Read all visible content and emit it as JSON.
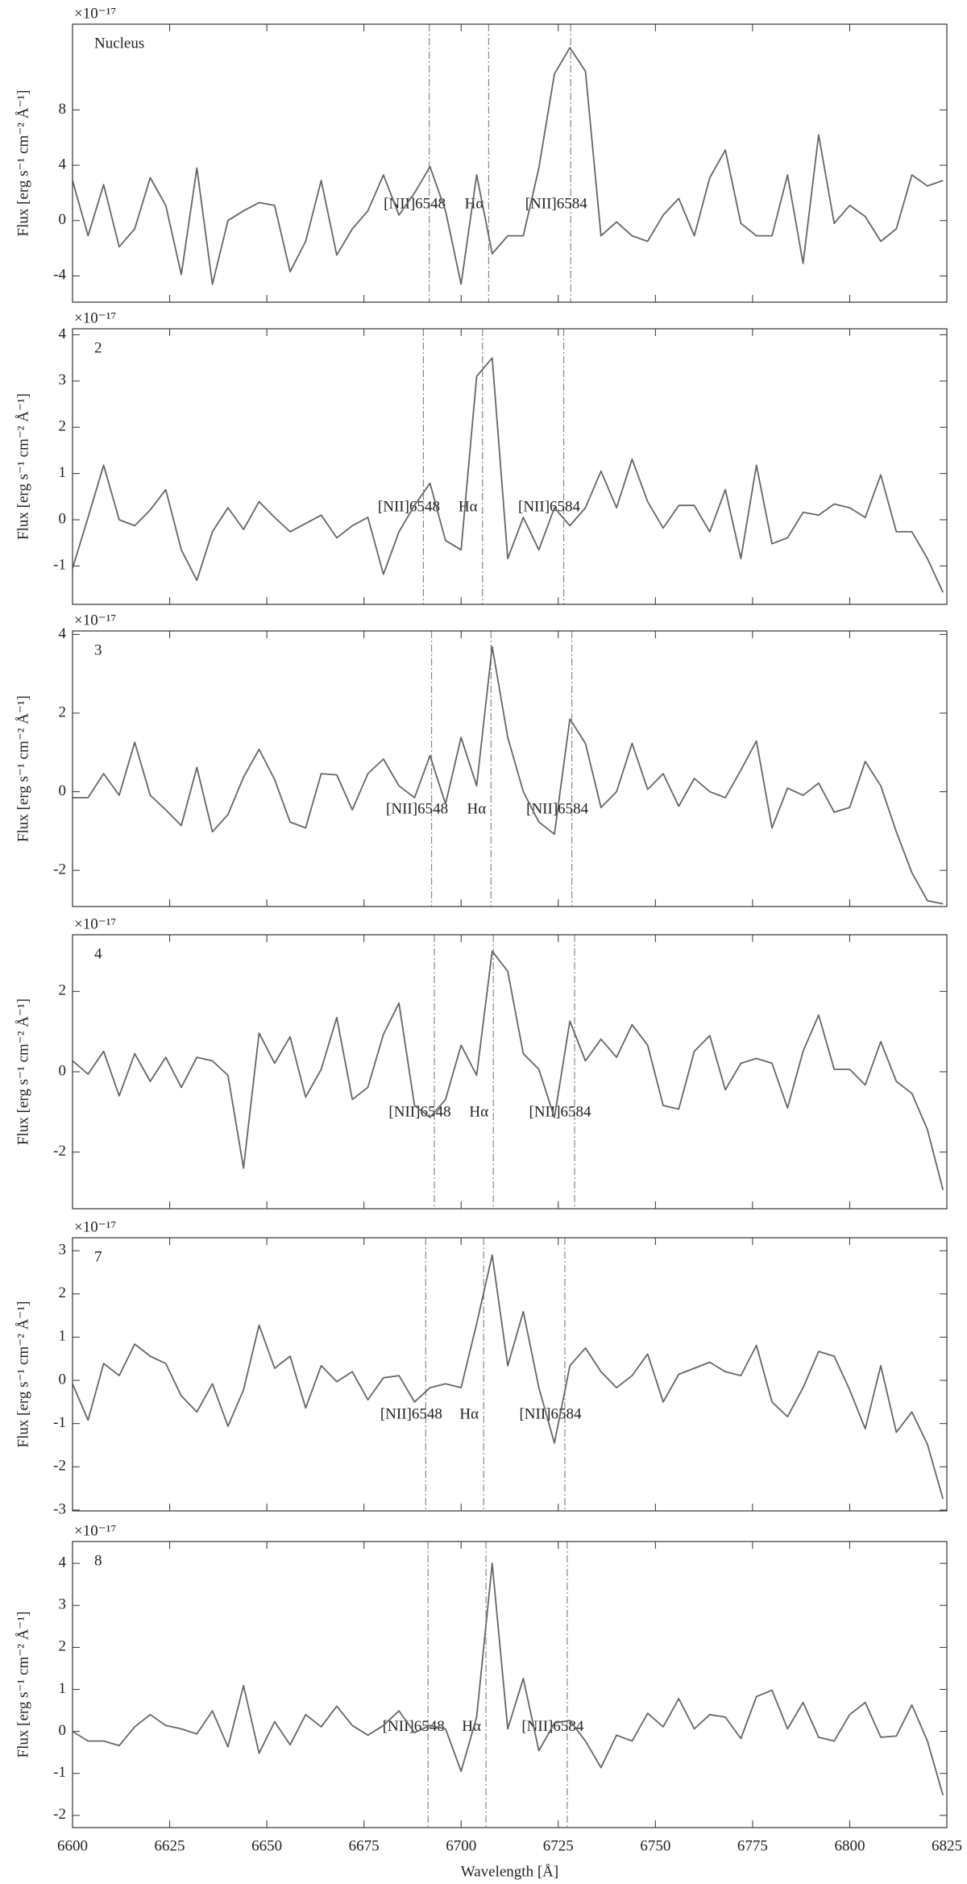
{
  "chart_data": [
    {
      "type": "line",
      "label": "Nucleus",
      "offset_text": "×10⁻¹⁷",
      "ylabel": "Flux [erg s⁻¹ cm⁻² Å⁻¹]",
      "xlim": [
        6600,
        6825
      ],
      "ylim": [
        -5.9,
        14.2
      ],
      "yticks": [
        -4,
        0,
        4,
        8
      ],
      "x": [
        6600,
        6604,
        6608,
        6612,
        6616,
        6620,
        6624,
        6628,
        6632,
        6636,
        6640,
        6644,
        6648,
        6652,
        6656,
        6660,
        6664,
        6668,
        6672,
        6676,
        6680,
        6684,
        6688,
        6692,
        6696,
        6700,
        6704,
        6708,
        6712,
        6716,
        6720,
        6724,
        6728,
        6732,
        6736,
        6740,
        6744,
        6748,
        6752,
        6756,
        6760,
        6764,
        6768,
        6772,
        6776,
        6780,
        6784,
        6788,
        6792,
        6796,
        6800,
        6804,
        6808,
        6812,
        6816,
        6820,
        6824
      ],
      "series": [
        {
          "color": "#666666",
          "values": [
            2.9,
            -1.1,
            2.6,
            -1.9,
            -0.6,
            3.1,
            1.1,
            -3.9,
            3.8,
            -4.6,
            0,
            0.7,
            1.3,
            1.1,
            -3.7,
            -1.5,
            2.9,
            -2.5,
            -0.6,
            0.7,
            3.3,
            0.4,
            2.0,
            3.9,
            0.7,
            -4.6,
            3.3,
            -2.4,
            -1.1,
            -1.1,
            3.8,
            10.6,
            12.5,
            10.8,
            -1.1,
            -0.1,
            -1.1,
            -1.5,
            0.4,
            1.6,
            -1.1,
            3.1,
            5.1,
            -0.2,
            -1.1,
            -1.1,
            3.3,
            -3.1,
            6.2,
            -0.2,
            1.1,
            0.3,
            -1.5,
            -0.6,
            3.3,
            2.5,
            2.9
          ]
        }
      ],
      "lines": [
        {
          "x": 6691.8,
          "label": "[NII]6548"
        },
        {
          "x": 6707.1,
          "label": "Hα"
        },
        {
          "x": 6728.2,
          "label": "[NII]6584"
        }
      ]
    },
    {
      "type": "line",
      "label": "2",
      "offset_text": "×10⁻¹⁷",
      "ylabel": "Flux [erg s⁻¹ cm⁻² Å⁻¹]",
      "xlim": [
        6600,
        6825
      ],
      "ylim": [
        -1.83,
        4.13
      ],
      "yticks": [
        -1,
        0,
        1,
        2,
        3,
        4
      ],
      "x": [
        6600,
        6604,
        6608,
        6612,
        6616,
        6620,
        6624,
        6628,
        6632,
        6636,
        6640,
        6644,
        6648,
        6652,
        6656,
        6660,
        6664,
        6668,
        6672,
        6676,
        6680,
        6684,
        6688,
        6692,
        6696,
        6700,
        6704,
        6708,
        6712,
        6716,
        6720,
        6724,
        6728,
        6732,
        6736,
        6740,
        6744,
        6748,
        6752,
        6756,
        6760,
        6764,
        6768,
        6772,
        6776,
        6780,
        6784,
        6788,
        6792,
        6796,
        6800,
        6804,
        6808,
        6812,
        6816,
        6820,
        6824
      ],
      "series": [
        {
          "color": "#666666",
          "values": [
            -1.05,
            0.05,
            1.18,
            0,
            -0.13,
            0.21,
            0.65,
            -0.65,
            -1.31,
            -0.26,
            0.26,
            -0.21,
            0.39,
            0.05,
            -0.26,
            -0.08,
            0.1,
            -0.39,
            -0.13,
            0.05,
            -1.18,
            -0.26,
            0.31,
            0.79,
            -0.45,
            -0.65,
            3.1,
            3.5,
            -0.84,
            0.05,
            -0.65,
            0.26,
            -0.13,
            0.26,
            1.05,
            0.26,
            1.31,
            0.39,
            -0.18,
            0.31,
            0.31,
            -0.26,
            0.65,
            -0.84,
            1.18,
            -0.52,
            -0.39,
            0.16,
            0.1,
            0.34,
            0.26,
            0.05,
            0.97,
            -0.26,
            -0.26,
            -0.84,
            -1.57
          ]
        }
      ],
      "lines": [
        {
          "x": 6690.3,
          "label": "[NII]6548"
        },
        {
          "x": 6705.5,
          "label": "Hα"
        },
        {
          "x": 6726.4,
          "label": "[NII]6584"
        }
      ]
    },
    {
      "type": "line",
      "label": "3",
      "offset_text": "×10⁻¹⁷",
      "ylabel": "Flux [erg s⁻¹ cm⁻² Å⁻¹]",
      "xlim": [
        6600,
        6825
      ],
      "ylim": [
        -2.92,
        4.09
      ],
      "yticks": [
        -2,
        0,
        2,
        4
      ],
      "x": [
        6600,
        6604,
        6608,
        6612,
        6616,
        6620,
        6624,
        6628,
        6632,
        6636,
        6640,
        6644,
        6648,
        6652,
        6656,
        6660,
        6664,
        6668,
        6672,
        6676,
        6680,
        6684,
        6688,
        6692,
        6696,
        6700,
        6704,
        6708,
        6712,
        6716,
        6720,
        6724,
        6728,
        6732,
        6736,
        6740,
        6744,
        6748,
        6752,
        6756,
        6760,
        6764,
        6768,
        6772,
        6776,
        6780,
        6784,
        6788,
        6792,
        6796,
        6800,
        6804,
        6808,
        6812,
        6816,
        6820,
        6824
      ],
      "series": [
        {
          "color": "#666666",
          "values": [
            -0.15,
            -0.15,
            0.46,
            -0.09,
            1.26,
            -0.09,
            -0.46,
            -0.86,
            0.62,
            -1.02,
            -0.58,
            0.37,
            1.08,
            0.31,
            -0.77,
            -0.92,
            0.46,
            0.43,
            -0.46,
            0.46,
            0.83,
            0.15,
            -0.15,
            0.92,
            -0.31,
            1.38,
            0.15,
            3.69,
            1.38,
            0,
            -0.77,
            -1.08,
            1.85,
            1.23,
            -0.4,
            0,
            1.23,
            0.06,
            0.46,
            -0.37,
            0.34,
            0,
            -0.15,
            0.55,
            1.29,
            -0.92,
            0.09,
            -0.09,
            0.22,
            -0.52,
            -0.4,
            0.77,
            0.15,
            -1.02,
            -2.06,
            -2.77,
            -2.85
          ]
        }
      ],
      "lines": [
        {
          "x": 6692.4,
          "label": "[NII]6548"
        },
        {
          "x": 6707.7,
          "label": "Hα"
        },
        {
          "x": 6728.5,
          "label": "[NII]6584"
        }
      ]
    },
    {
      "type": "line",
      "label": "4",
      "offset_text": "×10⁻¹⁷",
      "ylabel": "Flux [erg s⁻¹ cm⁻² Å⁻¹]",
      "xlim": [
        6600,
        6825
      ],
      "ylim": [
        -3.41,
        3.41
      ],
      "yticks": [
        -2,
        0,
        2
      ],
      "x": [
        6600,
        6604,
        6608,
        6612,
        6616,
        6620,
        6624,
        6628,
        6632,
        6636,
        6640,
        6644,
        6648,
        6652,
        6656,
        6660,
        6664,
        6668,
        6672,
        6676,
        6680,
        6684,
        6688,
        6692,
        6696,
        6700,
        6704,
        6708,
        6712,
        6716,
        6720,
        6724,
        6728,
        6732,
        6736,
        6740,
        6744,
        6748,
        6752,
        6756,
        6760,
        6764,
        6768,
        6772,
        6776,
        6780,
        6784,
        6788,
        6792,
        6796,
        6800,
        6804,
        6808,
        6812,
        6816,
        6820,
        6824
      ],
      "series": [
        {
          "color": "#666666",
          "values": [
            0.27,
            -0.06,
            0.51,
            -0.6,
            0.45,
            -0.24,
            0.36,
            -0.39,
            0.36,
            0.27,
            -0.09,
            -2.4,
            0.96,
            0.21,
            0.87,
            -0.63,
            0.06,
            1.35,
            -0.69,
            -0.39,
            0.93,
            1.71,
            -0.84,
            -1.14,
            -0.69,
            0.66,
            -0.09,
            3.0,
            2.5,
            0.45,
            0.06,
            -1.14,
            1.26,
            0.27,
            0.81,
            0.36,
            1.17,
            0.66,
            -0.84,
            -0.93,
            0.51,
            0.9,
            -0.45,
            0.21,
            0.33,
            0.21,
            -0.9,
            0.51,
            1.41,
            0.06,
            0.06,
            -0.33,
            0.75,
            -0.24,
            -0.54,
            -1.44,
            -2.94
          ]
        }
      ],
      "lines": [
        {
          "x": 6693.1,
          "label": "[NII]6548"
        },
        {
          "x": 6708.3,
          "label": "Hα"
        },
        {
          "x": 6729.2,
          "label": "[NII]6584"
        }
      ]
    },
    {
      "type": "line",
      "label": "7",
      "offset_text": "×10⁻¹⁷",
      "ylabel": "Flux [erg s⁻¹ cm⁻² Å⁻¹]",
      "xlim": [
        6600,
        6825
      ],
      "ylim": [
        -3.02,
        3.3
      ],
      "yticks": [
        -3,
        -2,
        -1,
        0,
        1,
        2,
        3
      ],
      "x": [
        6600,
        6604,
        6608,
        6612,
        6616,
        6620,
        6624,
        6628,
        6632,
        6636,
        6640,
        6644,
        6648,
        6652,
        6656,
        6660,
        6664,
        6668,
        6672,
        6676,
        6680,
        6684,
        6688,
        6692,
        6696,
        6700,
        6704,
        6708,
        6712,
        6716,
        6720,
        6724,
        6728,
        6732,
        6736,
        6740,
        6744,
        6748,
        6752,
        6756,
        6760,
        6764,
        6768,
        6772,
        6776,
        6780,
        6784,
        6788,
        6792,
        6796,
        6800,
        6804,
        6808,
        6812,
        6816,
        6820,
        6824
      ],
      "series": [
        {
          "color": "#666666",
          "values": [
            -0.08,
            -0.92,
            0.39,
            0.11,
            0.84,
            0.56,
            0.39,
            -0.36,
            -0.73,
            -0.08,
            -1.06,
            -0.22,
            1.28,
            0.28,
            0.56,
            -0.64,
            0.34,
            -0.03,
            0.2,
            -0.45,
            0.06,
            0.11,
            -0.5,
            -0.17,
            -0.08,
            -0.17,
            1.31,
            2.9,
            0.34,
            1.59,
            -0.17,
            -1.45,
            0.34,
            0.75,
            0.2,
            -0.17,
            0.11,
            0.61,
            -0.5,
            0.14,
            0.28,
            0.42,
            0.2,
            0.11,
            0.81,
            -0.5,
            -0.84,
            -0.17,
            0.67,
            0.56,
            -0.22,
            -1.12,
            0.34,
            -1.2,
            -0.73,
            -1.48,
            -2.74
          ]
        }
      ],
      "lines": [
        {
          "x": 6690.9,
          "label": "[NII]6548"
        },
        {
          "x": 6705.8,
          "label": "Hα"
        },
        {
          "x": 6726.7,
          "label": "[NII]6584"
        }
      ]
    },
    {
      "type": "line",
      "label": "8",
      "offset_text": "×10⁻¹⁷",
      "ylabel": "Flux [erg s⁻¹ cm⁻² Å⁻¹]",
      "xlabel": "Wavelength [Å]",
      "xlim": [
        6600,
        6825
      ],
      "ylim": [
        -2.29,
        4.52
      ],
      "yticks": [
        -2,
        -1,
        0,
        1,
        2,
        3,
        4
      ],
      "xticks": [
        6600,
        6625,
        6650,
        6675,
        6700,
        6725,
        6750,
        6775,
        6800,
        6825
      ],
      "x": [
        6600,
        6604,
        6608,
        6612,
        6616,
        6620,
        6624,
        6628,
        6632,
        6636,
        6640,
        6644,
        6648,
        6652,
        6656,
        6660,
        6664,
        6668,
        6672,
        6676,
        6680,
        6684,
        6688,
        6692,
        6696,
        6700,
        6704,
        6708,
        6712,
        6716,
        6720,
        6724,
        6728,
        6732,
        6736,
        6740,
        6744,
        6748,
        6752,
        6756,
        6760,
        6764,
        6768,
        6772,
        6776,
        6780,
        6784,
        6788,
        6792,
        6796,
        6800,
        6804,
        6808,
        6812,
        6816,
        6820,
        6824
      ],
      "series": [
        {
          "color": "#666666",
          "values": [
            0,
            -0.23,
            -0.23,
            -0.34,
            0.11,
            0.4,
            0.14,
            0.06,
            -0.06,
            0.49,
            -0.37,
            1.09,
            -0.52,
            0.23,
            -0.32,
            0.4,
            0.11,
            0.6,
            0.14,
            -0.09,
            0.14,
            0.49,
            -0.03,
            0.14,
            0.06,
            -0.95,
            0.34,
            4.0,
            0.06,
            1.26,
            -0.46,
            0.2,
            0.26,
            -0.23,
            -0.86,
            -0.09,
            -0.23,
            0.43,
            0.11,
            0.78,
            0.06,
            0.4,
            0.34,
            -0.17,
            0.83,
            0.98,
            0.06,
            0.69,
            -0.14,
            -0.23,
            0.4,
            0.69,
            -0.14,
            -0.11,
            0.63,
            -0.23,
            -1.52
          ]
        }
      ],
      "lines": [
        {
          "x": 6691.5,
          "label": "[NII]6548"
        },
        {
          "x": 6706.4,
          "label": "Hα"
        },
        {
          "x": 6727.3,
          "label": "[NII]6584"
        }
      ]
    }
  ]
}
